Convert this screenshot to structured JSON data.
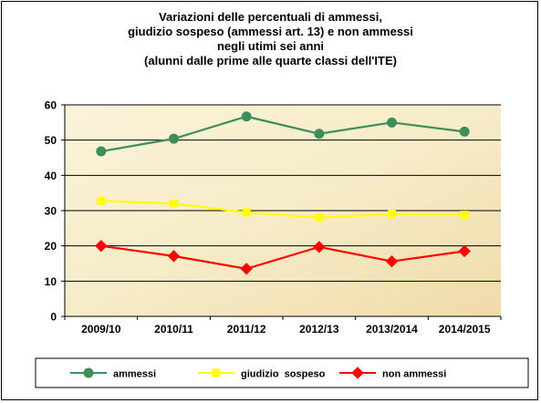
{
  "chart_data": {
    "type": "line",
    "title_lines": [
      "Variazioni delle percentuali di ammessi,",
      "giudizio sospeso (ammessi art. 13) e non ammessi",
      "negli utimi sei anni",
      "(alunni dalle prime alle quarte classi dell'ITE)"
    ],
    "categories": [
      "2009/10",
      "2010/11",
      "2011/12",
      "2012/13",
      "2013/2014",
      "2014/2015"
    ],
    "ylim": [
      0,
      60
    ],
    "yticks": [
      0,
      10,
      20,
      30,
      40,
      50,
      60
    ],
    "grid": true,
    "legend_position": "bottom",
    "series": [
      {
        "name": "ammessi",
        "values": [
          46.8,
          50.4,
          56.7,
          51.8,
          55.0,
          52.4
        ],
        "color": "#3d8e5a",
        "marker": "circle"
      },
      {
        "name": "giudizio  sospeso",
        "values": [
          32.8,
          32.0,
          29.5,
          28.0,
          29.0,
          28.8
        ],
        "color": "#ffff00",
        "marker": "square"
      },
      {
        "name": "non ammessi",
        "values": [
          20.0,
          17.1,
          13.5,
          19.7,
          15.6,
          18.5
        ],
        "color": "#ff0000",
        "marker": "diamond"
      }
    ],
    "plot_background": "#f7ecc8"
  }
}
